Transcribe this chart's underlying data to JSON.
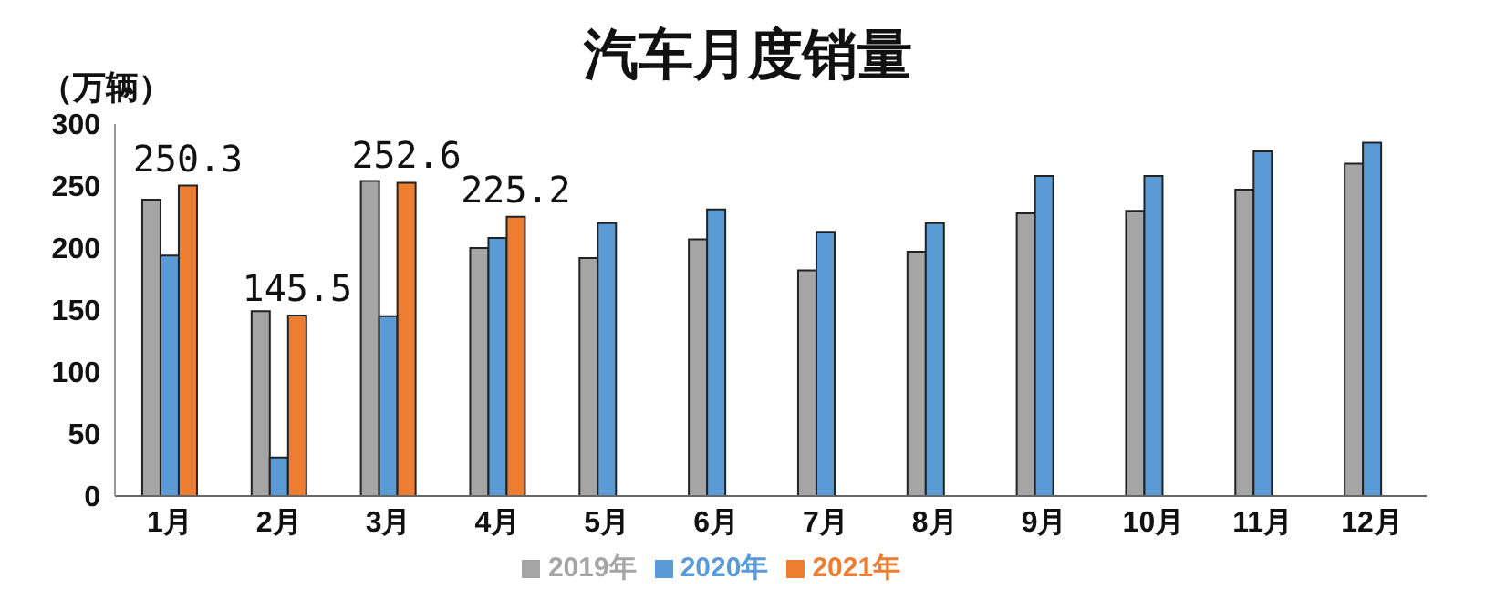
{
  "chart_data": {
    "type": "bar",
    "title": "汽车月度销量",
    "ylabel": "（万辆）",
    "categories": [
      "1月",
      "2月",
      "3月",
      "4月",
      "5月",
      "6月",
      "7月",
      "8月",
      "9月",
      "10月",
      "11月",
      "12月"
    ],
    "series": [
      {
        "name": "2019年",
        "color": "#a5a5a5",
        "values": [
          239,
          149,
          254,
          200,
          192,
          207,
          182,
          197,
          228,
          230,
          247,
          268
        ]
      },
      {
        "name": "2020年",
        "color": "#5b9bd5",
        "values": [
          194,
          31,
          145,
          208,
          220,
          231,
          213,
          220,
          258,
          258,
          278,
          285
        ]
      },
      {
        "name": "2021年",
        "color": "#ed7d31",
        "values": [
          250.3,
          145.5,
          252.6,
          225.2,
          null,
          null,
          null,
          null,
          null,
          null,
          null,
          null
        ],
        "value_labels": [
          "250.3",
          "145.5",
          "252.6",
          "225.2",
          null,
          null,
          null,
          null,
          null,
          null,
          null,
          null
        ]
      }
    ],
    "ylim": [
      0,
      300
    ],
    "yticks": [
      0,
      50,
      100,
      150,
      200,
      250,
      300
    ],
    "grid": false,
    "legend": "bottom"
  }
}
